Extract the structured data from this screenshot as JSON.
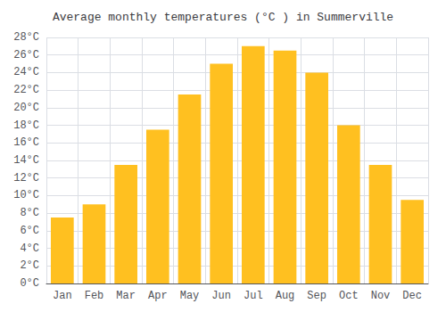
{
  "chart_data": {
    "type": "bar",
    "title": "Average monthly temperatures (°C ) in Summerville",
    "categories": [
      "Jan",
      "Feb",
      "Mar",
      "Apr",
      "May",
      "Jun",
      "Jul",
      "Aug",
      "Sep",
      "Oct",
      "Nov",
      "Dec"
    ],
    "values": [
      7.5,
      9.0,
      13.5,
      17.5,
      21.5,
      25.0,
      27.0,
      26.5,
      24.0,
      18.0,
      13.5,
      9.5
    ],
    "color": "#FFC020",
    "ylim": [
      0,
      28
    ],
    "yticks": [
      {
        "value": 0,
        "label": "0°C"
      },
      {
        "value": 2,
        "label": "2°C"
      },
      {
        "value": 4,
        "label": "4°C"
      },
      {
        "value": 6,
        "label": "6°C"
      },
      {
        "value": 8,
        "label": "8°C"
      },
      {
        "value": 10,
        "label": "10°C"
      },
      {
        "value": 12,
        "label": "12°C"
      },
      {
        "value": 14,
        "label": "14°C"
      },
      {
        "value": 16,
        "label": "16°C"
      },
      {
        "value": 18,
        "label": "18°C"
      },
      {
        "value": 20,
        "label": "20°C"
      },
      {
        "value": 22,
        "label": "22°C"
      },
      {
        "value": 24,
        "label": "24°C"
      },
      {
        "value": 26,
        "label": "26°C"
      },
      {
        "value": 28,
        "label": "28°C"
      }
    ],
    "grid": true
  }
}
